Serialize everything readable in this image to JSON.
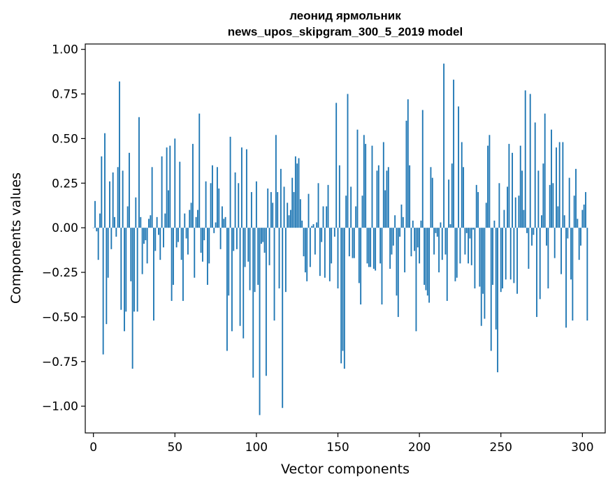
{
  "chart_data": {
    "type": "bar",
    "title": [
      "леонид ярмольник",
      "news_upos_skipgram_300_5_2019 model"
    ],
    "xlabel": "Vector components",
    "ylabel": "Components values",
    "xlim": [
      -5,
      314
    ],
    "ylim": [
      -1.15,
      1.03
    ],
    "xticks": [
      0,
      50,
      100,
      150,
      200,
      250,
      300
    ],
    "yticks": [
      -1.0,
      -0.75,
      -0.5,
      -0.25,
      0.0,
      0.25,
      0.5,
      0.75,
      1.0
    ],
    "ytick_labels": [
      "−1.00",
      "−0.75",
      "−0.50",
      "−0.25",
      "0.00",
      "0.25",
      "0.50",
      "0.75",
      "1.00"
    ],
    "bar_color": "#1f77b4",
    "values": [
      0.0,
      0.15,
      -0.02,
      -0.18,
      0.08,
      0.4,
      -0.71,
      0.53,
      -0.54,
      -0.28,
      0.26,
      -0.12,
      0.31,
      0.06,
      -0.05,
      0.34,
      0.82,
      -0.46,
      0.32,
      -0.58,
      -0.47,
      0.12,
      0.42,
      -0.3,
      -0.79,
      -0.47,
      0.17,
      -0.47,
      0.62,
      0.06,
      -0.26,
      -0.09,
      -0.07,
      -0.2,
      0.05,
      0.07,
      0.34,
      -0.52,
      -0.13,
      0.06,
      -0.04,
      -0.18,
      0.4,
      -0.11,
      0.08,
      0.45,
      0.21,
      0.46,
      -0.41,
      -0.32,
      0.5,
      -0.11,
      -0.08,
      0.37,
      -0.18,
      -0.41,
      0.08,
      -0.06,
      -0.15,
      0.1,
      0.14,
      0.47,
      -0.28,
      0.06,
      0.1,
      0.64,
      -0.14,
      -0.19,
      -0.07,
      0.26,
      -0.32,
      -0.2,
      0.25,
      0.35,
      -0.03,
      0.03,
      0.34,
      0.22,
      -0.12,
      0.12,
      0.05,
      0.06,
      -0.69,
      -0.38,
      0.51,
      -0.58,
      -0.13,
      0.31,
      -0.12,
      0.25,
      -0.55,
      0.45,
      -0.62,
      -0.22,
      0.44,
      -0.19,
      -0.35,
      0.2,
      -0.84,
      -0.36,
      0.26,
      -0.32,
      -1.05,
      -0.09,
      -0.08,
      -0.14,
      -0.83,
      0.22,
      -0.21,
      0.2,
      0.14,
      -0.52,
      0.52,
      0.2,
      -0.34,
      0.33,
      -1.01,
      0.23,
      -0.36,
      0.14,
      0.07,
      0.1,
      0.28,
      0.2,
      0.4,
      0.36,
      0.39,
      0.16,
      0.04,
      -0.16,
      -0.25,
      -0.3,
      0.19,
      -0.22,
      0.01,
      0.02,
      -0.15,
      0.03,
      0.25,
      -0.27,
      -0.08,
      0.12,
      -0.28,
      0.12,
      0.24,
      -0.3,
      -0.2,
      0.0,
      -0.05,
      0.7,
      -0.34,
      0.35,
      -0.76,
      -0.69,
      -0.79,
      0.18,
      0.75,
      -0.16,
      0.23,
      -0.17,
      -0.17,
      0.12,
      0.55,
      -0.31,
      -0.43,
      0.18,
      0.52,
      0.47,
      -0.2,
      -0.22,
      -0.22,
      0.46,
      -0.23,
      -0.24,
      0.32,
      0.35,
      -0.2,
      -0.43,
      0.48,
      0.21,
      0.32,
      0.34,
      -0.23,
      -0.15,
      -0.1,
      0.07,
      -0.38,
      -0.5,
      -0.05,
      0.13,
      0.06,
      -0.25,
      0.6,
      0.72,
      0.35,
      -0.16,
      0.04,
      -0.13,
      -0.58,
      -0.11,
      -0.2,
      0.04,
      0.66,
      -0.32,
      -0.35,
      -0.38,
      -0.42,
      0.34,
      0.28,
      -0.15,
      -0.03,
      -0.05,
      -0.25,
      0.03,
      -0.18,
      0.92,
      -0.15,
      -0.41,
      0.27,
      0.02,
      0.36,
      0.83,
      -0.3,
      -0.28,
      0.68,
      -0.2,
      0.48,
      0.34,
      -0.15,
      -0.03,
      -0.2,
      -0.06,
      -0.21,
      -0.01,
      -0.34,
      0.24,
      0.2,
      -0.33,
      -0.55,
      -0.37,
      -0.51,
      0.14,
      0.46,
      0.52,
      -0.69,
      -0.32,
      0.04,
      -0.57,
      -0.81,
      0.25,
      -0.36,
      -0.34,
      0.1,
      -0.29,
      0.23,
      0.47,
      -0.29,
      0.42,
      -0.31,
      0.17,
      -0.37,
      0.18,
      0.46,
      0.32,
      0.1,
      0.77,
      -0.03,
      -0.23,
      0.75,
      -0.1,
      -0.04,
      0.59,
      -0.5,
      0.32,
      -0.4,
      0.07,
      0.36,
      0.64,
      -0.1,
      -0.34,
      0.24,
      0.55,
      0.25,
      -0.17,
      0.45,
      0.12,
      0.48,
      -0.26,
      0.48,
      0.07,
      -0.56,
      -0.06,
      0.28,
      -0.29,
      -0.52,
      0.18,
      0.33,
      0.05,
      -0.18,
      -0.1,
      0.1,
      0.13,
      0.2,
      -0.52
    ]
  }
}
